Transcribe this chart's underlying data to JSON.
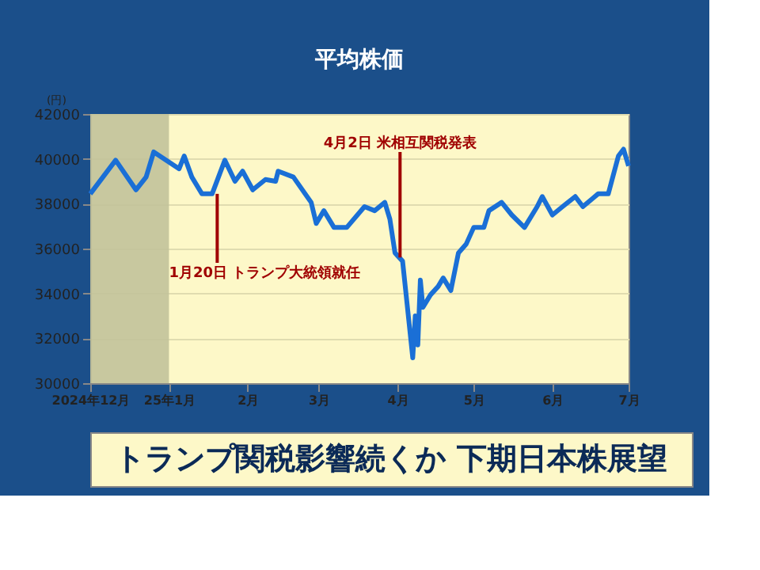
{
  "chart_data": {
    "type": "line",
    "title": "平均株価",
    "ylabel": "(円)",
    "x": [
      "2024-12-01",
      "2024-12-11",
      "2024-12-19",
      "2024-12-23",
      "2024-12-26",
      "2025-01-05",
      "2025-01-07",
      "2025-01-10",
      "2025-01-14",
      "2025-01-18",
      "2025-01-23",
      "2025-01-27",
      "2025-01-30",
      "2025-02-03",
      "2025-02-08",
      "2025-02-12",
      "2025-02-13",
      "2025-02-19",
      "2025-02-26",
      "2025-02-28",
      "2025-03-03",
      "2025-03-07",
      "2025-03-12",
      "2025-03-19",
      "2025-03-23",
      "2025-03-27",
      "2025-03-29",
      "2025-03-31",
      "2025-04-03",
      "2025-04-07",
      "2025-04-08",
      "2025-04-09",
      "2025-04-10",
      "2025-04-11",
      "2025-04-14",
      "2025-04-17",
      "2025-04-19",
      "2025-04-22",
      "2025-04-25",
      "2025-04-28",
      "2025-05-01",
      "2025-05-05",
      "2025-05-07",
      "2025-05-12",
      "2025-05-16",
      "2025-05-21",
      "2025-05-26",
      "2025-05-28",
      "2025-06-01",
      "2025-06-05",
      "2025-06-10",
      "2025-06-13",
      "2025-06-17",
      "2025-06-19",
      "2025-06-23",
      "2025-06-27",
      "2025-06-29",
      "2025-07-01"
    ],
    "series": [
      {
        "color": "#1a6fd6",
        "values": [
          38440,
          39940,
          38620,
          39190,
          40310,
          39560,
          40130,
          39190,
          38440,
          38440,
          39940,
          39000,
          39450,
          38620,
          39080,
          39000,
          39450,
          39190,
          38060,
          37120,
          37690,
          36940,
          36940,
          37870,
          37690,
          38060,
          37310,
          35810,
          35440,
          31130,
          33000,
          31700,
          34600,
          33380,
          33940,
          34310,
          34690,
          34130,
          35810,
          36190,
          36940,
          36940,
          37690,
          38060,
          37500,
          36940,
          37870,
          38320,
          37500,
          37870,
          38320,
          37870,
          38250,
          38440,
          38440,
          40130,
          40430,
          39680
        ]
      }
    ],
    "xlim": [
      "2024-12-01",
      "2025-07-01"
    ],
    "xticks": [
      {
        "value": "2024-12-01",
        "label": "2024年12月"
      },
      {
        "value": "2025-01-01",
        "label": "25年1月"
      },
      {
        "value": "2025-02-01",
        "label": "2月"
      },
      {
        "value": "2025-03-01",
        "label": "3月"
      },
      {
        "value": "2025-04-01",
        "label": "4月"
      },
      {
        "value": "2025-05-01",
        "label": "5月"
      },
      {
        "value": "2025-06-01",
        "label": "6月"
      },
      {
        "value": "2025-07-01",
        "label": "7月"
      }
    ],
    "ylim": [
      30000,
      42000
    ],
    "yticks": [
      30000,
      32000,
      34000,
      36000,
      38000,
      40000,
      42000
    ],
    "grid": "y",
    "legend": false,
    "marker": "none",
    "line_style": "solid",
    "bands": [
      {
        "axis": "x",
        "from": "2024-12-01",
        "to": "2025-01-01",
        "color": "#c2c29a"
      }
    ],
    "annotations": [
      {
        "text": "1月20日 トランプ大統領就任",
        "x": "2025-01-20",
        "y": 38440
      },
      {
        "text": "4月2日 米相互関税発表",
        "x": "2025-04-02",
        "y": 35600
      },
      "トランプ関税影響続くか 下期日本株展望"
    ]
  }
}
